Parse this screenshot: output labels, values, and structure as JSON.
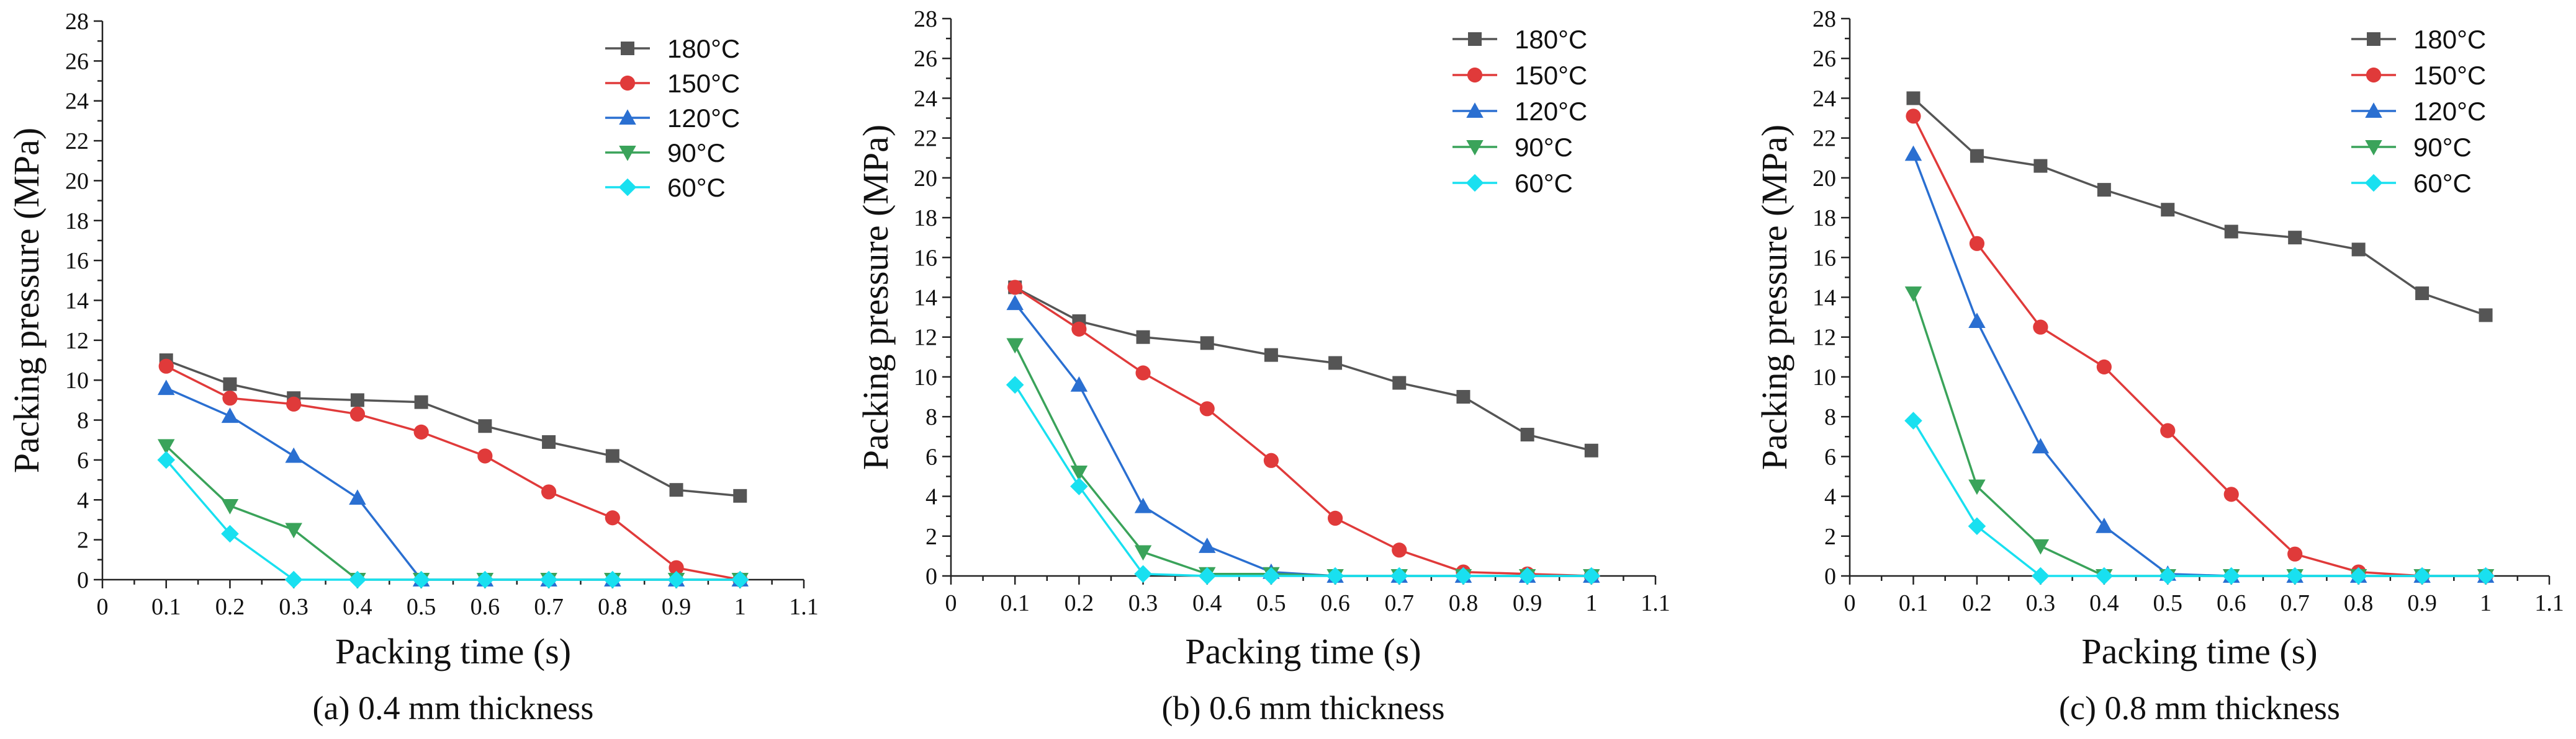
{
  "colors": {
    "180": "#555555",
    "150": "#e03a3a",
    "120": "#2a6fd1",
    "90": "#3aa35a",
    "60": "#19e0f0"
  },
  "chart_data": [
    {
      "type": "line",
      "caption": "(a) 0.4 mm thickness",
      "xlabel": "Packing time (s)",
      "ylabel": "Packing pressure (MPa)",
      "xlim": [
        0,
        1.1
      ],
      "ylim": [
        0,
        28
      ],
      "xticks": [
        0,
        0.1,
        0.2,
        0.3,
        0.4,
        0.5,
        0.6,
        0.7,
        0.8,
        0.9,
        1,
        1.1
      ],
      "xtick_labels": [
        "0",
        "0.1",
        "0.2",
        "0.3",
        "0.4",
        "0.5",
        "0.6",
        "0.7",
        "0.8",
        "0.9",
        "1",
        "1.1"
      ],
      "yticks": [
        0,
        2,
        4,
        6,
        8,
        10,
        12,
        14,
        16,
        18,
        20,
        22,
        24,
        26,
        28
      ],
      "ytick_labels": [
        "0",
        "2",
        "4",
        "6",
        "8",
        "10",
        "12",
        "14",
        "16",
        "18",
        "20",
        "22",
        "24",
        "26",
        "28"
      ],
      "legend_position": "top-right",
      "x": [
        0.1,
        0.2,
        0.3,
        0.4,
        0.5,
        0.6,
        0.7,
        0.8,
        0.9,
        1.0
      ],
      "series": [
        {
          "name": "180°C",
          "key": "180",
          "marker": "square",
          "values": [
            11.0,
            9.8,
            9.1,
            9.0,
            8.9,
            7.7,
            6.9,
            6.2,
            4.5,
            4.2
          ]
        },
        {
          "name": "150°C",
          "key": "150",
          "marker": "circle",
          "values": [
            10.7,
            9.1,
            8.8,
            8.3,
            7.4,
            6.2,
            4.4,
            3.1,
            0.6,
            0.0
          ]
        },
        {
          "name": "120°C",
          "key": "120",
          "marker": "triangle-up",
          "values": [
            9.6,
            8.2,
            6.2,
            4.1,
            0.0,
            0.0,
            0.0,
            0.0,
            0.0,
            0.0
          ]
        },
        {
          "name": "90°C",
          "key": "90",
          "marker": "triangle-down",
          "values": [
            6.7,
            3.7,
            2.5,
            0.0,
            0.0,
            0.0,
            0.0,
            0.0,
            0.0,
            0.0
          ]
        },
        {
          "name": "60°C",
          "key": "60",
          "marker": "diamond",
          "values": [
            6.0,
            2.3,
            0.0,
            0.0,
            0.0,
            0.0,
            0.0,
            0.0,
            0.0,
            0.0
          ]
        }
      ]
    },
    {
      "type": "line",
      "caption": "(b) 0.6 mm thickness",
      "xlabel": "Packing time (s)",
      "ylabel": "Packing pressure (MPa)",
      "xlim": [
        0,
        1.1
      ],
      "ylim": [
        0,
        28
      ],
      "xticks": [
        0,
        0.1,
        0.2,
        0.3,
        0.4,
        0.5,
        0.6,
        0.7,
        0.8,
        0.9,
        1,
        1.1
      ],
      "xtick_labels": [
        "0",
        "0.1",
        "0.2",
        "0.3",
        "0.4",
        "0.5",
        "0.6",
        "0.7",
        "0.8",
        "0.9",
        "1",
        "1.1"
      ],
      "yticks": [
        0,
        2,
        4,
        6,
        8,
        10,
        12,
        14,
        16,
        18,
        20,
        22,
        24,
        26,
        28
      ],
      "ytick_labels": [
        "0",
        "2",
        "4",
        "6",
        "8",
        "10",
        "12",
        "14",
        "16",
        "18",
        "20",
        "22",
        "24",
        "26",
        "28"
      ],
      "legend_position": "top-right",
      "x": [
        0.1,
        0.2,
        0.3,
        0.4,
        0.5,
        0.6,
        0.7,
        0.8,
        0.9,
        1.0
      ],
      "series": [
        {
          "name": "180°C",
          "key": "180",
          "marker": "square",
          "values": [
            14.5,
            12.8,
            12.0,
            11.7,
            11.1,
            10.7,
            9.7,
            9.0,
            7.1,
            6.3
          ]
        },
        {
          "name": "150°C",
          "key": "150",
          "marker": "circle",
          "values": [
            14.5,
            12.4,
            10.2,
            8.4,
            5.8,
            2.9,
            1.3,
            0.2,
            0.1,
            0.0
          ]
        },
        {
          "name": "120°C",
          "key": "120",
          "marker": "triangle-up",
          "values": [
            13.7,
            9.6,
            3.5,
            1.5,
            0.2,
            0.0,
            0.0,
            0.0,
            0.0,
            0.0
          ]
        },
        {
          "name": "90°C",
          "key": "90",
          "marker": "triangle-down",
          "values": [
            11.6,
            5.2,
            1.2,
            0.1,
            0.1,
            0.0,
            0.0,
            0.0,
            0.0,
            0.0
          ]
        },
        {
          "name": "60°C",
          "key": "60",
          "marker": "diamond",
          "values": [
            9.6,
            4.5,
            0.1,
            0.0,
            0.0,
            0.0,
            0.0,
            0.0,
            0.0,
            0.0
          ]
        }
      ]
    },
    {
      "type": "line",
      "caption": "(c) 0.8 mm thickness",
      "xlabel": "Packing time (s)",
      "ylabel": "Packing pressure (MPa)",
      "xlim": [
        0,
        1.1
      ],
      "ylim": [
        0,
        28
      ],
      "xticks": [
        0,
        0.1,
        0.2,
        0.3,
        0.4,
        0.5,
        0.6,
        0.7,
        0.8,
        0.9,
        1,
        1.1
      ],
      "xtick_labels": [
        "0",
        "0.1",
        "0.2",
        "0.3",
        "0.4",
        "0.5",
        "0.6",
        "0.7",
        "0.8",
        "0.9",
        "1",
        "1.1"
      ],
      "yticks": [
        0,
        2,
        4,
        6,
        8,
        10,
        12,
        14,
        16,
        18,
        20,
        22,
        24,
        26,
        28
      ],
      "ytick_labels": [
        "0",
        "2",
        "4",
        "6",
        "8",
        "10",
        "12",
        "14",
        "16",
        "18",
        "20",
        "22",
        "24",
        "26",
        "28"
      ],
      "legend_position": "top-right",
      "x": [
        0.1,
        0.2,
        0.3,
        0.4,
        0.5,
        0.6,
        0.7,
        0.8,
        0.9,
        1.0
      ],
      "series": [
        {
          "name": "180°C",
          "key": "180",
          "marker": "square",
          "values": [
            24.0,
            21.1,
            20.6,
            19.4,
            18.4,
            17.3,
            17.0,
            16.4,
            14.2,
            13.1
          ]
        },
        {
          "name": "150°C",
          "key": "150",
          "marker": "circle",
          "values": [
            23.1,
            16.7,
            12.5,
            10.5,
            7.3,
            4.1,
            1.1,
            0.2,
            0.0,
            0.0
          ]
        },
        {
          "name": "120°C",
          "key": "120",
          "marker": "triangle-up",
          "values": [
            21.2,
            12.8,
            6.5,
            2.5,
            0.1,
            0.0,
            0.0,
            0.0,
            0.0,
            0.0
          ]
        },
        {
          "name": "90°C",
          "key": "90",
          "marker": "triangle-down",
          "values": [
            14.2,
            4.5,
            1.5,
            0.0,
            0.0,
            0.0,
            0.0,
            0.0,
            0.0,
            0.0
          ]
        },
        {
          "name": "60°C",
          "key": "60",
          "marker": "diamond",
          "values": [
            7.8,
            2.5,
            0.0,
            0.0,
            0.0,
            0.0,
            0.0,
            0.0,
            0.0,
            0.0
          ]
        }
      ]
    }
  ]
}
